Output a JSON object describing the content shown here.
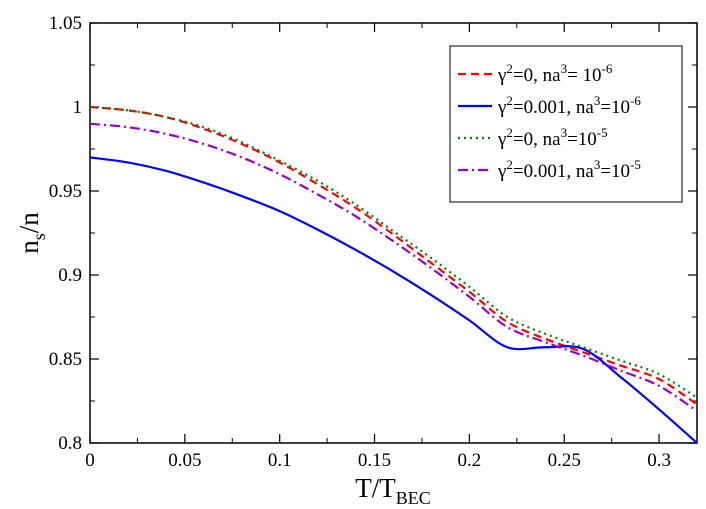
{
  "chart_data": {
    "type": "line",
    "xlabel": "T/T",
    "xlabel_sub": "BEC",
    "ylabel": "n",
    "ylabel_sub": "s",
    "ylabel_tail": "/n",
    "xlim": [
      0,
      0.32
    ],
    "ylim": [
      0.8,
      1.05
    ],
    "xticks": [
      0,
      0.05,
      0.1,
      0.15,
      0.2,
      0.25,
      0.3
    ],
    "xtick_labels": [
      "0",
      "0.05",
      "0.1",
      "0.15",
      "0.2",
      "0.25",
      "0.3"
    ],
    "yticks": [
      0.8,
      0.85,
      0.9,
      0.95,
      1.0,
      1.05
    ],
    "ytick_labels": [
      "0.8",
      "0.85",
      "0.9",
      "0.95",
      "1",
      "1.05"
    ],
    "legend_position": "top-right",
    "series": [
      {
        "name": "γ²=0, na³= 10⁻⁶",
        "label_parts": [
          "γ",
          "2",
          "=0, na",
          "3",
          "= 10",
          "-6"
        ],
        "color": "#ff0000",
        "dash": "dashed",
        "x": [
          0,
          0.02,
          0.04,
          0.06,
          0.08,
          0.1,
          0.12,
          0.14,
          0.16,
          0.18,
          0.2,
          0.22,
          0.24,
          0.26,
          0.28,
          0.3,
          0.32
        ],
        "y": [
          1.0,
          0.998,
          0.994,
          0.987,
          0.978,
          0.967,
          0.954,
          0.94,
          0.924,
          0.907,
          0.89,
          0.872,
          0.862,
          0.854,
          0.846,
          0.838,
          0.823
        ]
      },
      {
        "name": "γ²=0.001, na³=10⁻⁶",
        "label_parts": [
          "γ",
          "2",
          "=0.001, na",
          "3",
          "=10",
          "-6"
        ],
        "color": "#0000ff",
        "dash": "solid",
        "x": [
          0,
          0.02,
          0.04,
          0.06,
          0.08,
          0.1,
          0.12,
          0.14,
          0.16,
          0.18,
          0.2,
          0.22,
          0.24,
          0.26,
          0.28,
          0.3,
          0.32
        ],
        "y": [
          0.97,
          0.967,
          0.962,
          0.955,
          0.947,
          0.938,
          0.927,
          0.915,
          0.902,
          0.888,
          0.873,
          0.857,
          0.857,
          0.856,
          0.839,
          0.82,
          0.8
        ]
      },
      {
        "name": "γ²=0, na³=10⁻⁵",
        "label_parts": [
          "γ",
          "2",
          "=0, na",
          "3",
          "=10",
          "-5"
        ],
        "color": "#008000",
        "dash": "dotted",
        "x": [
          0,
          0.02,
          0.04,
          0.06,
          0.08,
          0.1,
          0.12,
          0.14,
          0.16,
          0.18,
          0.2,
          0.22,
          0.24,
          0.26,
          0.28,
          0.3,
          0.32
        ],
        "y": [
          1.0,
          0.998,
          0.994,
          0.988,
          0.979,
          0.968,
          0.956,
          0.942,
          0.926,
          0.91,
          0.893,
          0.875,
          0.865,
          0.857,
          0.849,
          0.841,
          0.827
        ]
      },
      {
        "name": "γ²=0.001, na³=10⁻⁵",
        "label_parts": [
          "γ",
          "2",
          "=0.001, na",
          "3",
          "=10",
          "-5"
        ],
        "color": "#9400d3",
        "dash": "dashdot",
        "x": [
          0,
          0.02,
          0.04,
          0.06,
          0.08,
          0.1,
          0.12,
          0.14,
          0.16,
          0.18,
          0.2,
          0.22,
          0.24,
          0.26,
          0.28,
          0.3,
          0.32
        ],
        "y": [
          0.99,
          0.988,
          0.984,
          0.978,
          0.97,
          0.96,
          0.948,
          0.935,
          0.92,
          0.904,
          0.887,
          0.869,
          0.86,
          0.852,
          0.843,
          0.834,
          0.819
        ]
      }
    ]
  }
}
